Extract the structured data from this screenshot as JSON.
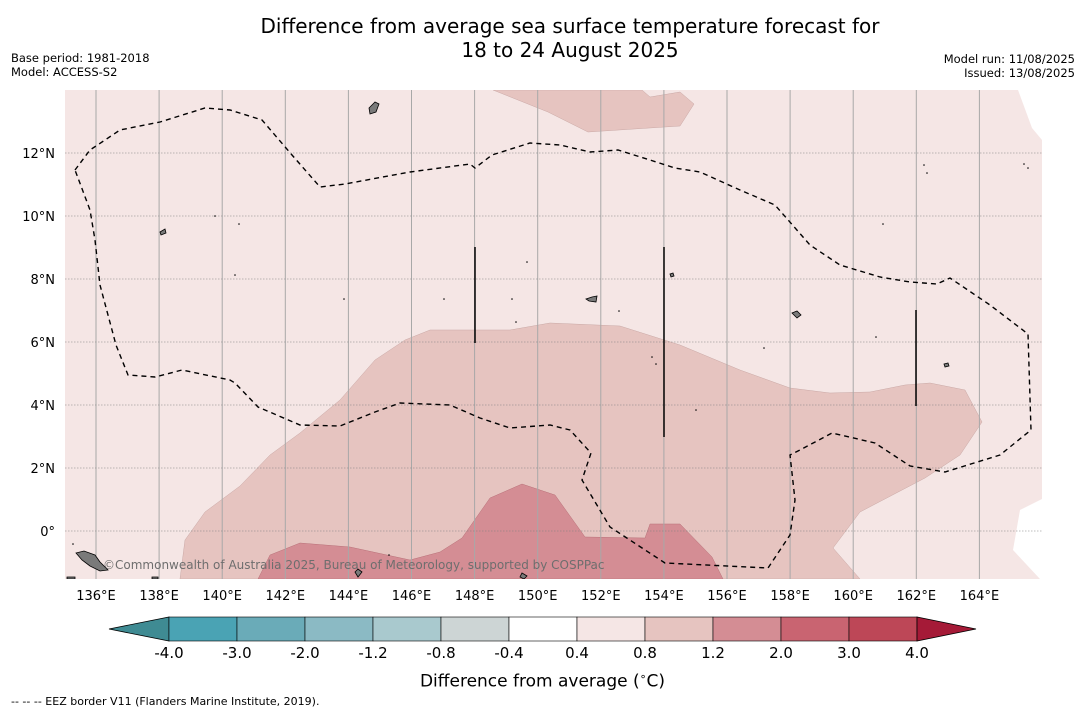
{
  "header": {
    "title_line1": "Difference from average sea surface temperature forecast for",
    "title_line2": "18 to 24 August 2025",
    "base_period": "Base period: 1981-2018",
    "model": "Model: ACCESS-S2",
    "model_run": "Model run: 11/08/2025",
    "issued": "Issued: 13/08/2025"
  },
  "map": {
    "lon_ticks": [
      "136°E",
      "138°E",
      "140°E",
      "142°E",
      "144°E",
      "146°E",
      "148°E",
      "150°E",
      "152°E",
      "154°E",
      "156°E",
      "158°E",
      "160°E",
      "162°E",
      "164°E"
    ],
    "lat_ticks": [
      "12°N",
      "10°N",
      "8°N",
      "6°N",
      "4°N",
      "2°N",
      "0°"
    ],
    "attribution": "©Commonwealth of Australia 2025, Bureau of Meteorology, supported by COSPPac"
  },
  "colorbar": {
    "labels": [
      "-4.0",
      "-3.0",
      "-2.0",
      "-1.2",
      "-0.8",
      "-0.4",
      "0.4",
      "0.8",
      "1.2",
      "2.0",
      "3.0",
      "4.0"
    ],
    "colors": [
      "#4aa3b4",
      "#6aabb8",
      "#8bbac4",
      "#a9c9ce",
      "#cdd5d5",
      "#ffffff",
      "#f5e6e5",
      "#e6c4c0",
      "#d48d94",
      "#c96471",
      "#bd4757"
    ],
    "under_color": "#3f8b93",
    "over_color": "#a51a37",
    "label": "Difference from average ($^\\circ$C)"
  },
  "footer": {
    "legend_text": "-- -- -- EEZ border V11 (Flanders Marine Institute, 2019)."
  }
}
